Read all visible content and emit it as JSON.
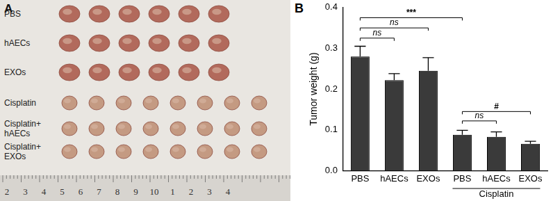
{
  "panel_a": {
    "label": "A",
    "rows": [
      {
        "name": "PBS",
        "count": 6
      },
      {
        "name": "hAECs",
        "count": 6
      },
      {
        "name": "EXOs",
        "count": 6
      },
      {
        "name": "Cisplatin",
        "count": 8
      },
      {
        "name": "Cisplatin+hAECs",
        "count": 8
      },
      {
        "name": "Cisplatin+EXOs",
        "count": 8
      }
    ],
    "ruler": [
      "2",
      "3",
      "4",
      "5",
      "6",
      "7",
      "8",
      "9",
      "10",
      "1",
      "2",
      "3",
      "4"
    ]
  },
  "chart_data": {
    "type": "bar",
    "panel_label": "B",
    "y_label": "Tumor weight (g)",
    "categories": [
      "PBS",
      "hAECs",
      "EXOs",
      "PBS",
      "hAECs",
      "EXOs"
    ],
    "values": [
      0.28,
      0.222,
      0.245,
      0.088,
      0.083,
      0.066
    ],
    "errors": [
      0.025,
      0.016,
      0.032,
      0.011,
      0.012,
      0.006
    ],
    "color": "#3a3a3a",
    "ylim": [
      0,
      0.4
    ],
    "yticks": [
      {
        "value": 0,
        "label": "0.0"
      },
      {
        "value": 0.1,
        "label": "0.1"
      },
      {
        "value": 0.2,
        "label": "0.2"
      },
      {
        "value": 0.3,
        "label": "0.3"
      },
      {
        "value": 0.4,
        "label": "0.4"
      }
    ],
    "grid": false,
    "group_labels": [
      {
        "label": "Cisplatin",
        "from": 3,
        "to": 5
      }
    ],
    "annotations": [
      {
        "from": 0,
        "to": 1,
        "y": 0.325,
        "label": "ns"
      },
      {
        "from": 0,
        "to": 2,
        "y": 0.35,
        "label": "ns"
      },
      {
        "from": 0,
        "to": 3,
        "y": 0.375,
        "label": "***"
      },
      {
        "from": 3,
        "to": 4,
        "y": 0.122,
        "label": "ns"
      },
      {
        "from": 3,
        "to": 5,
        "y": 0.145,
        "label": "#"
      }
    ]
  }
}
